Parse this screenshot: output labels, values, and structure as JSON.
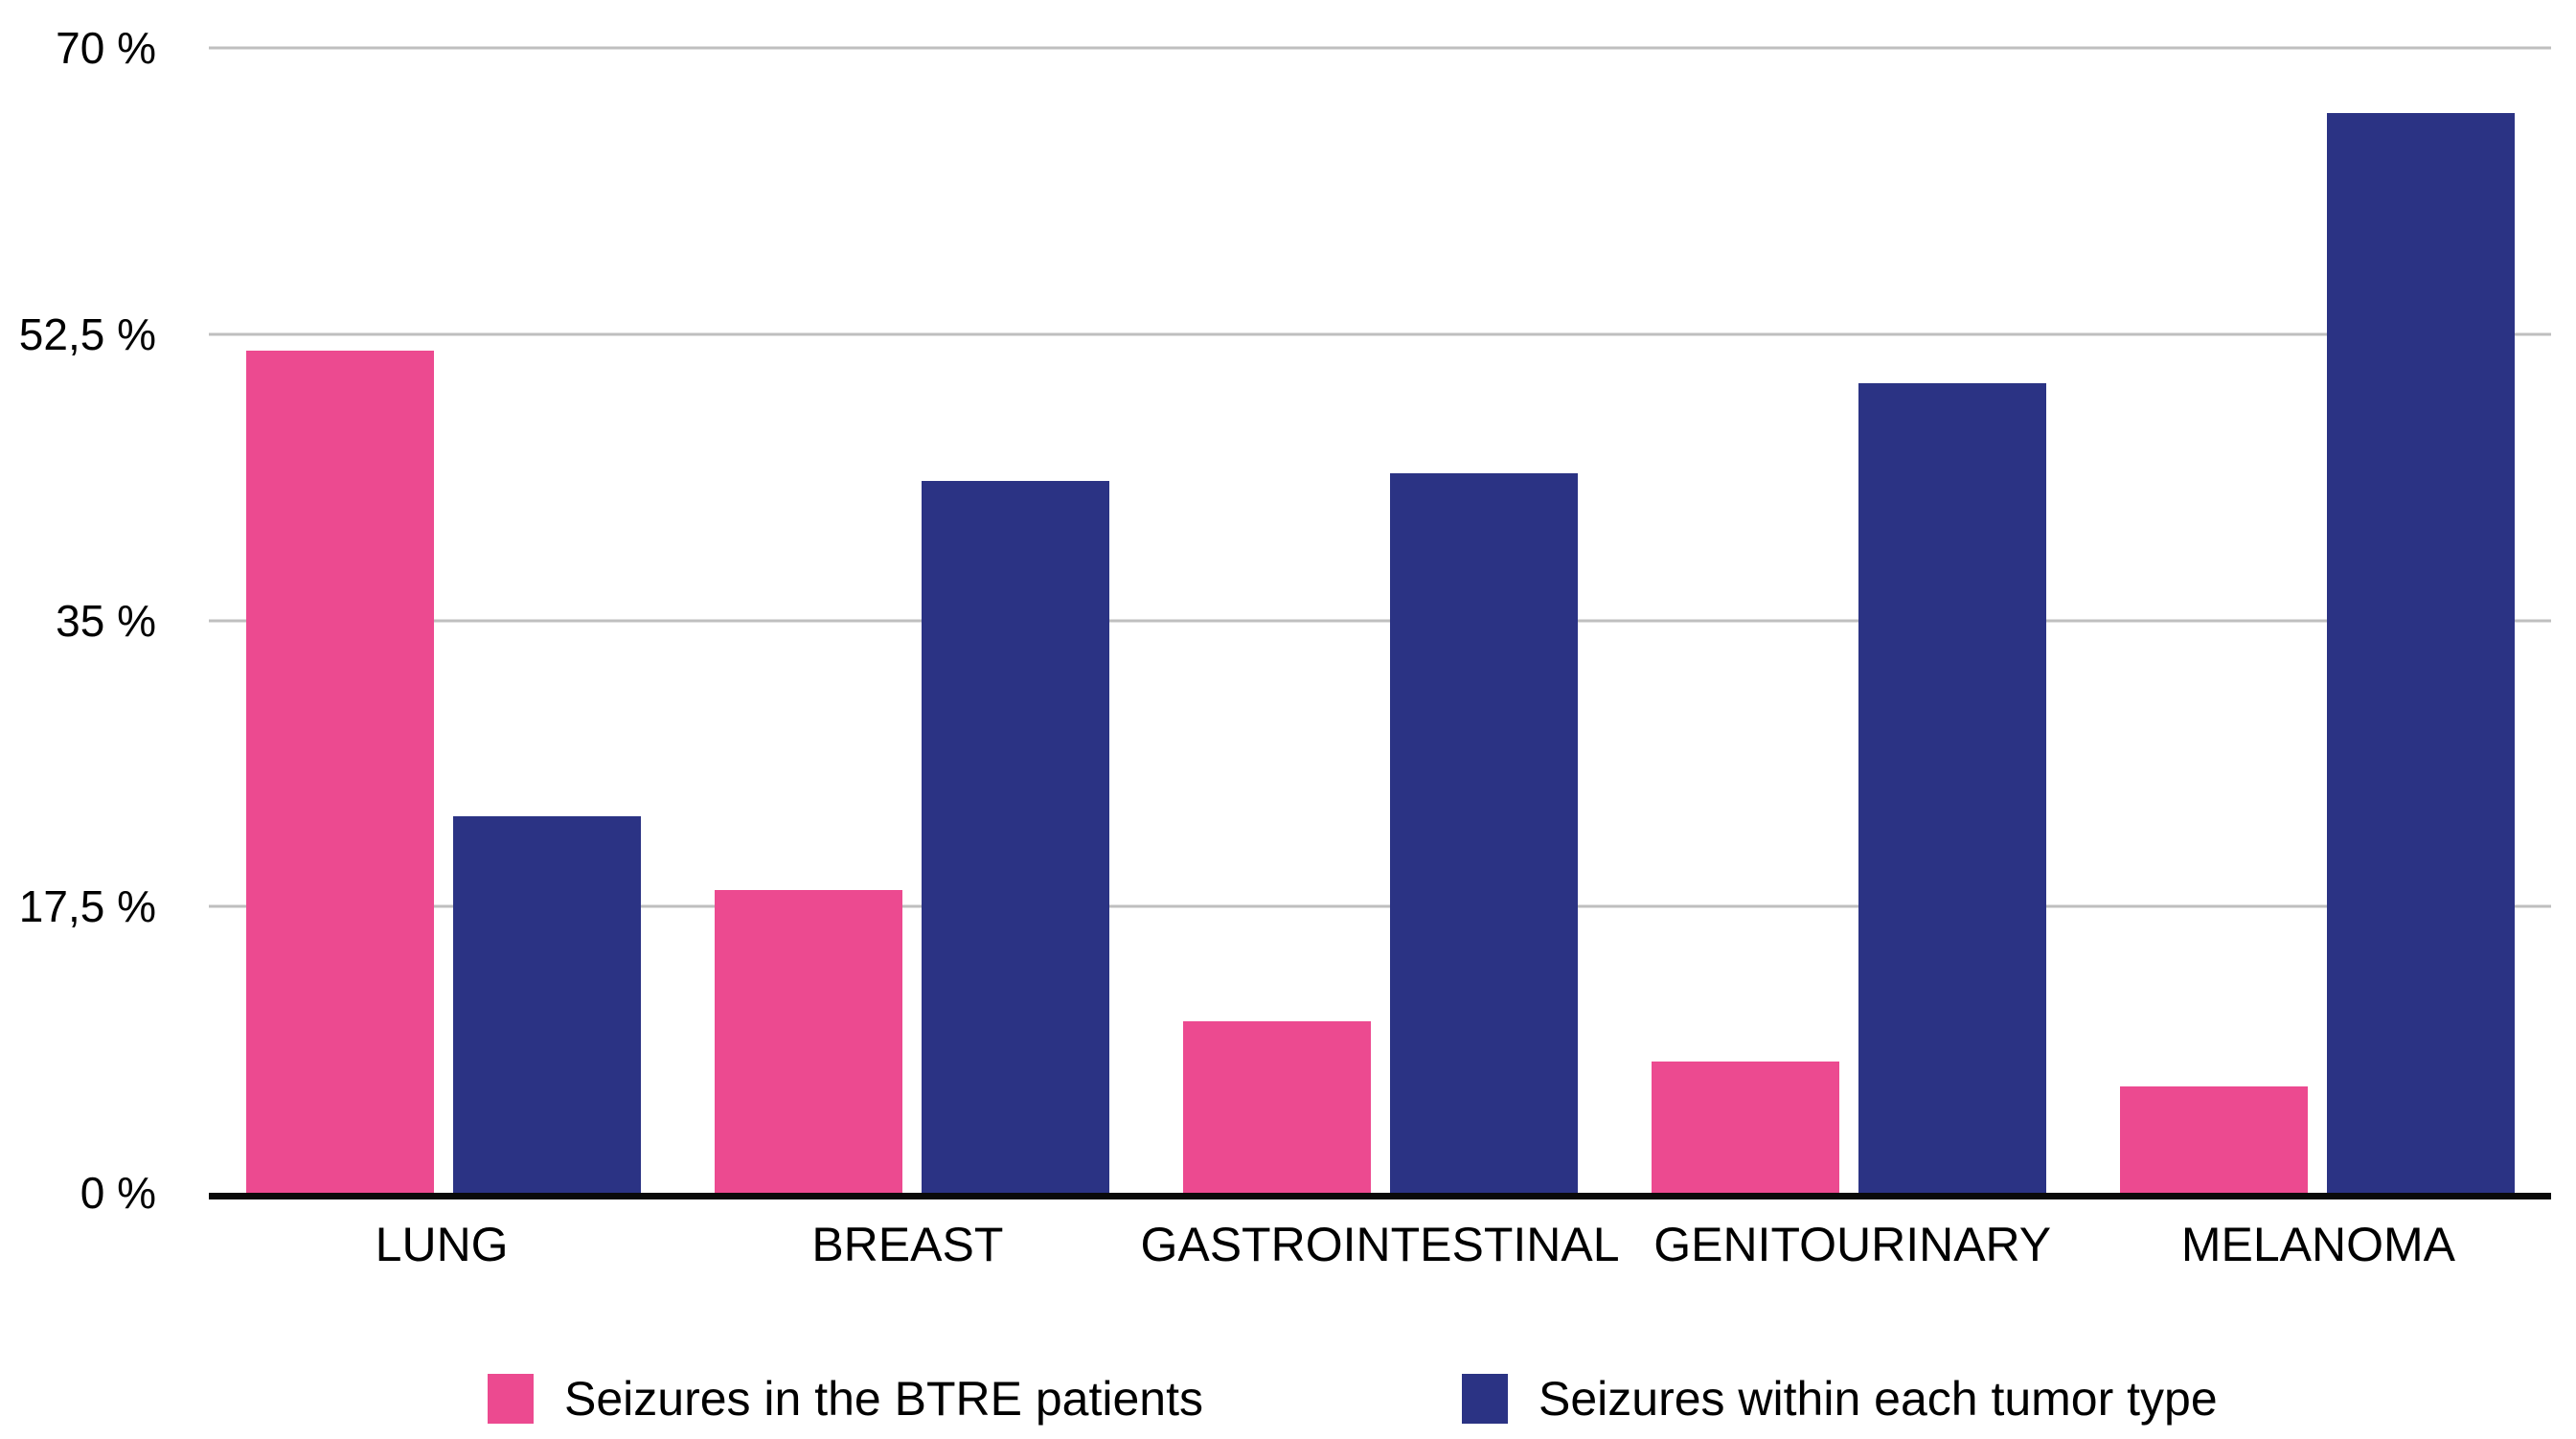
{
  "chart_data": {
    "type": "bar",
    "categories": [
      "LUNG",
      "BREAST",
      "GASTROINTESTINAL",
      "GENITOURINARY",
      "MELANOMA"
    ],
    "series": [
      {
        "key": "btre-patients",
        "name": "Seizures in the BTRE patients",
        "color": "#ec4a90",
        "values": [
          51.5,
          18.5,
          10.5,
          8,
          6.5
        ]
      },
      {
        "key": "tumor-type",
        "name": "Seizures within each tumor type",
        "color": "#2b3384",
        "values": [
          23,
          43.5,
          44,
          49.5,
          66
        ]
      }
    ],
    "title": "",
    "xlabel": "",
    "ylabel": "",
    "ylim": [
      0,
      70
    ],
    "yticks": [
      {
        "value": 70,
        "label": "70 %"
      },
      {
        "value": 52.5,
        "label": "52,5 %"
      },
      {
        "value": 35,
        "label": "35 %"
      },
      {
        "value": 17.5,
        "label": "17,5 %"
      },
      {
        "value": 0,
        "label": "0 %"
      }
    ],
    "grid": true,
    "legend_position": "bottom",
    "gridline_color": "#bfbfbf",
    "axis_line_color": "#0a0a0a"
  }
}
